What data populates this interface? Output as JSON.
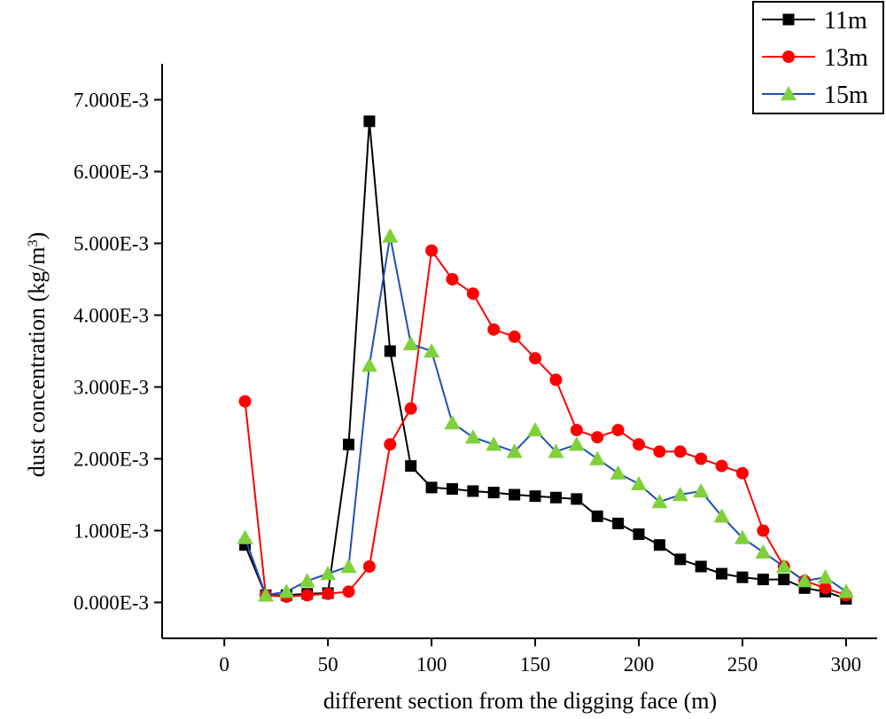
{
  "chart_data": {
    "type": "line",
    "title": "",
    "xlabel": "different section from the digging face (m)",
    "ylabel": "dust concentration (kg/m",
    "ylabel_sup": "3",
    "ylabel_end": ")",
    "xlim": [
      -30,
      315
    ],
    "ylim": [
      -0.0005,
      0.0075
    ],
    "x_ticks": [
      0,
      50,
      100,
      150,
      200,
      250,
      300
    ],
    "x_tick_labels": [
      "0",
      "50",
      "100",
      "150",
      "200",
      "250",
      "300"
    ],
    "y_ticks": [
      0,
      0.001,
      0.002,
      0.003,
      0.004,
      0.005,
      0.006,
      0.007
    ],
    "y_tick_labels": [
      "0.000E-3",
      "1.000E-3",
      "2.000E-3",
      "3.000E-3",
      "4.000E-3",
      "5.000E-3",
      "6.000E-3",
      "7.000E-3"
    ],
    "grid": false,
    "legend_position": "top-right",
    "series": [
      {
        "name": "11m",
        "color": "#000000",
        "marker": "square",
        "x": [
          10,
          20,
          30,
          40,
          50,
          60,
          70,
          80,
          90,
          100,
          110,
          120,
          130,
          140,
          150,
          160,
          170,
          180,
          190,
          200,
          210,
          220,
          230,
          240,
          250,
          260,
          270,
          280,
          290,
          300
        ],
        "y": [
          0.0008,
          0.0001,
          0.0001,
          0.00012,
          0.00013,
          0.0022,
          0.0067,
          0.0035,
          0.0019,
          0.0016,
          0.00158,
          0.00155,
          0.00153,
          0.0015,
          0.00148,
          0.00146,
          0.00144,
          0.0012,
          0.0011,
          0.00095,
          0.0008,
          0.0006,
          0.0005,
          0.0004,
          0.00035,
          0.00032,
          0.00032,
          0.0002,
          0.00015,
          5e-05
        ]
      },
      {
        "name": "13m",
        "color": "#ff0000",
        "marker": "circle",
        "x": [
          10,
          20,
          30,
          40,
          50,
          60,
          70,
          80,
          90,
          100,
          110,
          120,
          130,
          140,
          150,
          160,
          170,
          180,
          190,
          200,
          210,
          220,
          230,
          240,
          250,
          260,
          270,
          280,
          290,
          300
        ],
        "y": [
          0.0028,
          0.0001,
          8e-05,
          0.0001,
          0.00012,
          0.00015,
          0.0005,
          0.0022,
          0.0027,
          0.0049,
          0.0045,
          0.0043,
          0.0038,
          0.0037,
          0.0034,
          0.0031,
          0.0024,
          0.0023,
          0.0024,
          0.0022,
          0.0021,
          0.0021,
          0.002,
          0.0019,
          0.0018,
          0.001,
          0.0005,
          0.0003,
          0.0002,
          0.0001
        ]
      },
      {
        "name": "15m",
        "color": "#1f4fb8",
        "marker": "triangle",
        "marker_color": "#7fd13b",
        "x": [
          10,
          20,
          30,
          40,
          50,
          60,
          70,
          80,
          90,
          100,
          110,
          120,
          130,
          140,
          150,
          160,
          170,
          180,
          190,
          200,
          210,
          220,
          230,
          240,
          250,
          260,
          270,
          280,
          290,
          300
        ],
        "y": [
          0.0009,
          0.0001,
          0.00015,
          0.0003,
          0.0004,
          0.0005,
          0.0033,
          0.0051,
          0.0036,
          0.0035,
          0.0025,
          0.0023,
          0.0022,
          0.0021,
          0.0024,
          0.0021,
          0.0022,
          0.002,
          0.0018,
          0.00165,
          0.0014,
          0.0015,
          0.00155,
          0.0012,
          0.0009,
          0.0007,
          0.0005,
          0.0003,
          0.00035,
          0.00015
        ]
      }
    ]
  }
}
